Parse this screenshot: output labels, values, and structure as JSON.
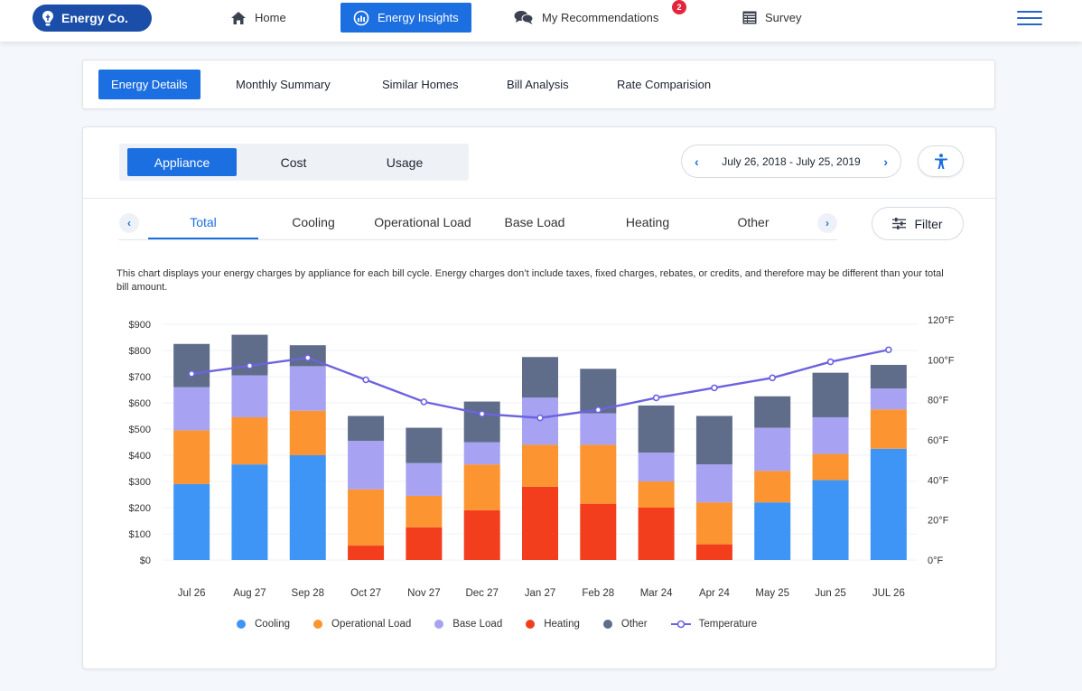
{
  "app": {
    "brand": "Energy Co."
  },
  "nav": {
    "home": "Home",
    "insights": "Energy Insights",
    "recommendations": "My Recommendations",
    "recommendations_badge": "2",
    "survey": "Survey"
  },
  "subtabs": [
    "Energy Details",
    "Monthly Summary",
    "Similar Homes",
    "Bill Analysis",
    "Rate Comparision"
  ],
  "view_toggle": [
    "Appliance",
    "Cost",
    "Usage"
  ],
  "date_range": "July 26, 2018 - July 25, 2019",
  "appliance_tabs": [
    "Total",
    "Cooling",
    "Operational Load",
    "Base Load",
    "Heating",
    "Other"
  ],
  "filter_label": "Filter",
  "description": "This chart displays your energy charges by appliance for each bill cycle. Energy charges don’t include taxes, fixed charges, rebates, or credits, and therefore may be different than your total bill amount.",
  "colors": {
    "accent": "#1c6fe0",
    "cooling": "#3f95f5",
    "operational": "#fb9431",
    "base": "#a7a3f2",
    "heating": "#f23e1d",
    "other": "#5f6d8b",
    "temperature": "#6c63e0"
  },
  "chart_data": {
    "type": "bar",
    "stacked": true,
    "categories": [
      "Jul 26",
      "Aug 27",
      "Sep 28",
      "Oct 27",
      "Nov 27",
      "Dec 27",
      "Jan 27",
      "Feb 28",
      "Mar 24",
      "Apr 24",
      "May 25",
      "Jun 25",
      "JUL 26"
    ],
    "series": [
      {
        "name": "Cooling",
        "values": [
          290,
          365,
          400,
          0,
          0,
          0,
          0,
          0,
          0,
          0,
          220,
          305,
          425
        ]
      },
      {
        "name": "Operational Load",
        "values": [
          205,
          180,
          170,
          215,
          120,
          175,
          160,
          225,
          100,
          160,
          120,
          100,
          150
        ]
      },
      {
        "name": "Base Load",
        "values": [
          165,
          160,
          170,
          185,
          125,
          85,
          180,
          120,
          110,
          145,
          165,
          140,
          80
        ]
      },
      {
        "name": "Heating",
        "values": [
          0,
          0,
          0,
          55,
          125,
          190,
          280,
          215,
          200,
          60,
          0,
          0,
          0
        ]
      },
      {
        "name": "Other",
        "values": [
          165,
          155,
          80,
          95,
          135,
          155,
          155,
          170,
          180,
          185,
          120,
          170,
          90
        ]
      }
    ],
    "temperature": {
      "name": "Temperature",
      "values": [
        93,
        97,
        101,
        90,
        79,
        73,
        71,
        75,
        81,
        86,
        91,
        99,
        105
      ]
    },
    "y_ticks": [
      "$900",
      "$800",
      "$700",
      "$600",
      "$500",
      "$400",
      "$300",
      "$200",
      "$100",
      "$0"
    ],
    "y2_ticks": [
      "120°F",
      "100°F",
      "80°F",
      "60°F",
      "40°F",
      "20°F",
      "0°F"
    ],
    "ylim": [
      0,
      900
    ],
    "y2lim": [
      0,
      120
    ],
    "legend": [
      "Cooling",
      "Operational Load",
      "Base Load",
      "Heating",
      "Other",
      "Temperature"
    ],
    "legend_position": "bottom"
  }
}
